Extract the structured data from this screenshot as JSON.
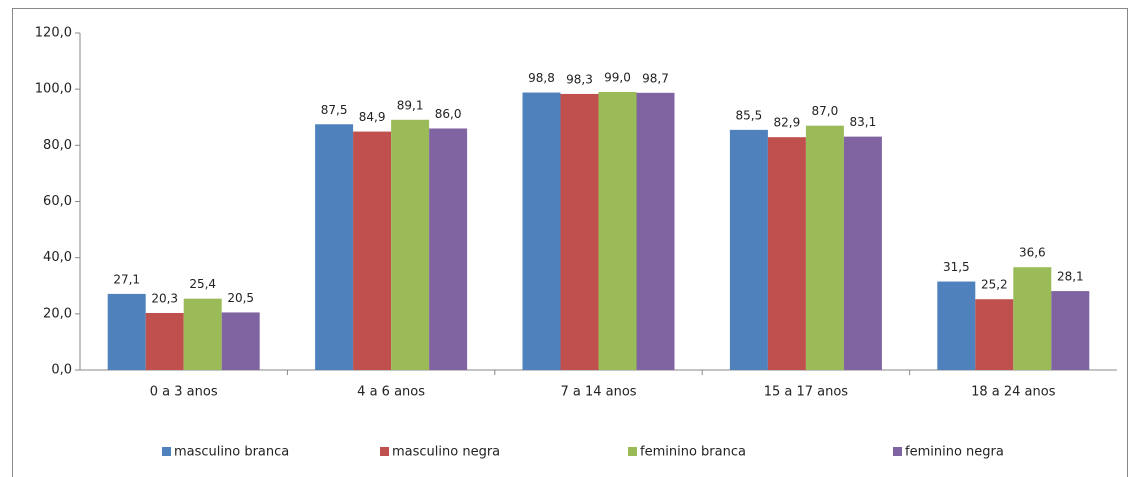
{
  "chart_data": {
    "type": "bar",
    "categories": [
      "0 a 3 anos",
      "4 a 6 anos",
      "7 a 14 anos",
      "15 a 17 anos",
      "18 a 24 anos"
    ],
    "series": [
      {
        "name": "masculino branca",
        "color": "#4f81bd",
        "values": [
          27.1,
          87.5,
          98.8,
          85.5,
          31.5
        ],
        "value_labels": [
          "27,1",
          "87,5",
          "98,8",
          "85,5",
          "31,5"
        ]
      },
      {
        "name": "masculino negra",
        "color": "#c0504d",
        "values": [
          20.3,
          84.9,
          98.3,
          82.9,
          25.2
        ],
        "value_labels": [
          "20,3",
          "84,9",
          "98,3",
          "82,9",
          "25,2"
        ]
      },
      {
        "name": "feminino branca",
        "color": "#9bbb59",
        "values": [
          25.4,
          89.1,
          99.0,
          87.0,
          36.6
        ],
        "value_labels": [
          "25,4",
          "89,1",
          "99,0",
          "87,0",
          "36,6"
        ]
      },
      {
        "name": "feminino negra",
        "color": "#8064a2",
        "values": [
          20.5,
          86.0,
          98.7,
          83.1,
          28.1
        ],
        "value_labels": [
          "20,5",
          "86,0",
          "98,7",
          "83,1",
          "28,1"
        ]
      }
    ],
    "ylim": [
      0,
      120
    ],
    "yticks": [
      {
        "value": 0,
        "label": "0,0"
      },
      {
        "value": 20,
        "label": "20,0"
      },
      {
        "value": 40,
        "label": "40,0"
      },
      {
        "value": 60,
        "label": "60,0"
      },
      {
        "value": 80,
        "label": "80,0"
      },
      {
        "value": 100,
        "label": "100,0"
      },
      {
        "value": 120,
        "label": "120,0"
      }
    ],
    "legend": "bottom"
  }
}
